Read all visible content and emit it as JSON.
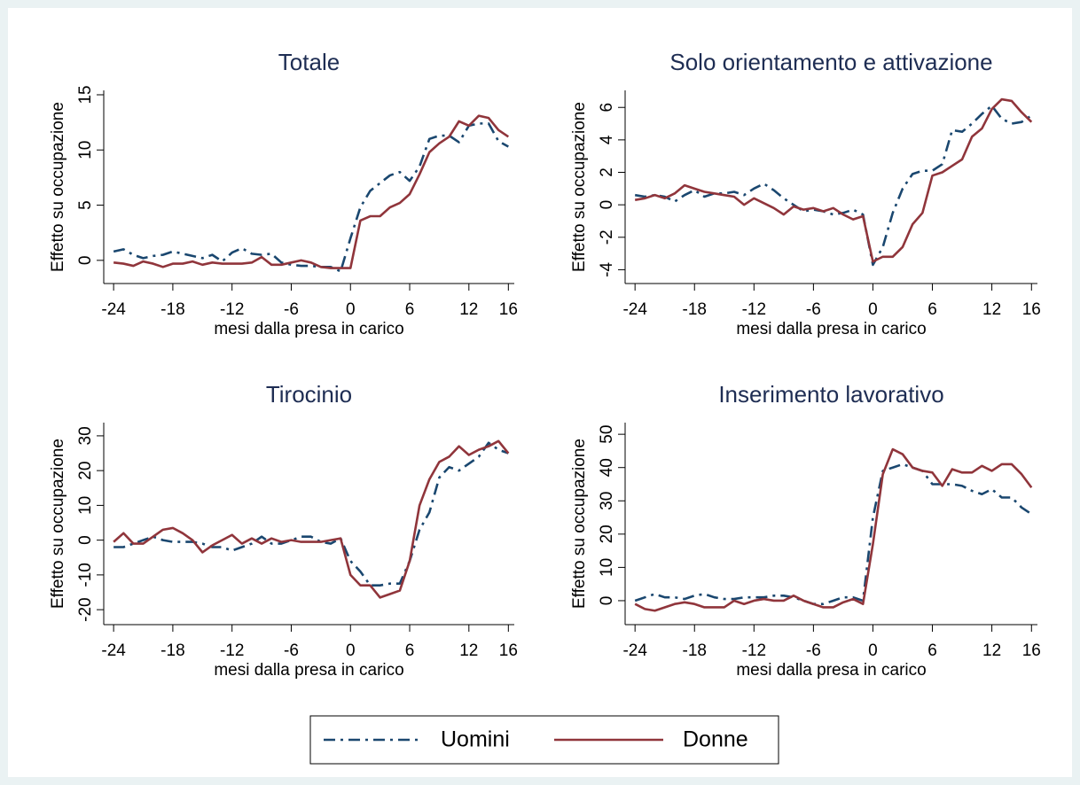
{
  "chart_data": [
    {
      "type": "line",
      "title": "Totale",
      "ylabel": "Effetto su occupazione",
      "xlabel": "mesi dalla presa in carico",
      "x": [
        -24,
        -23,
        -22,
        -21,
        -20,
        -19,
        -18,
        -17,
        -16,
        -15,
        -14,
        -13,
        -12,
        -11,
        -10,
        -9,
        -8,
        -7,
        -6,
        -5,
        -4,
        -3,
        -2,
        -1,
        0,
        1,
        2,
        3,
        4,
        5,
        6,
        7,
        8,
        9,
        10,
        11,
        12,
        13,
        14,
        15,
        16
      ],
      "xlim": [
        -25,
        16.6
      ],
      "xticks": [
        -24,
        -18,
        -12,
        -6,
        0,
        6,
        12,
        16
      ],
      "ylim": [
        -2.1,
        15.4
      ],
      "yticks": [
        0,
        5,
        10,
        15
      ],
      "series": [
        {
          "values": [
            0.8,
            1.0,
            0.5,
            0.2,
            0.4,
            0.5,
            0.8,
            0.6,
            0.4,
            0.2,
            0.5,
            -0.1,
            0.7,
            1.1,
            0.6,
            0.5,
            0.6,
            -0.2,
            -0.4,
            -0.5,
            -0.5,
            -0.6,
            -0.6,
            -1.0,
            2.0,
            4.8,
            6.3,
            7.0,
            7.7,
            8.0,
            7.2,
            8.5,
            11.0,
            11.3,
            11.3,
            10.7,
            12.2,
            12.4,
            12.4,
            10.8,
            10.3
          ]
        },
        {
          "values": [
            -0.2,
            -0.3,
            -0.5,
            -0.1,
            -0.3,
            -0.6,
            -0.3,
            -0.3,
            -0.1,
            -0.4,
            -0.2,
            -0.3,
            -0.3,
            -0.3,
            -0.2,
            0.3,
            -0.4,
            -0.4,
            -0.2,
            0.0,
            -0.2,
            -0.6,
            -0.7,
            -0.7,
            -0.7,
            3.6,
            4.0,
            4.0,
            4.8,
            5.2,
            6.0,
            7.8,
            9.8,
            10.6,
            11.2,
            12.6,
            12.2,
            13.1,
            12.9,
            11.8,
            11.2
          ]
        }
      ]
    },
    {
      "type": "line",
      "title": "Solo orientamento e attivazione",
      "ylabel": "Effetto su occupazione",
      "xlabel": "mesi dalla presa in carico",
      "x": [
        -24,
        -23,
        -22,
        -21,
        -20,
        -19,
        -18,
        -17,
        -16,
        -15,
        -14,
        -13,
        -12,
        -11,
        -10,
        -9,
        -8,
        -7,
        -6,
        -5,
        -4,
        -3,
        -2,
        -1,
        0,
        1,
        2,
        3,
        4,
        5,
        6,
        7,
        8,
        9,
        10,
        11,
        12,
        13,
        14,
        15,
        16
      ],
      "xlim": [
        -25,
        16.6
      ],
      "xticks": [
        -24,
        -18,
        -12,
        -6,
        0,
        6,
        12,
        16
      ],
      "ylim": [
        -4.85,
        7.05
      ],
      "yticks": [
        -4,
        -2,
        0,
        2,
        4,
        6
      ],
      "series": [
        {
          "values": [
            0.6,
            0.5,
            0.6,
            0.5,
            0.2,
            0.6,
            0.9,
            0.5,
            0.7,
            0.7,
            0.8,
            0.6,
            1.0,
            1.3,
            0.9,
            0.4,
            0.0,
            -0.4,
            -0.3,
            -0.4,
            -0.6,
            -0.5,
            -0.3,
            -0.6,
            -3.7,
            -2.6,
            -0.5,
            1.0,
            1.9,
            2.1,
            2.1,
            2.5,
            4.6,
            4.5,
            5.0,
            5.6,
            6.1,
            5.3,
            5.0,
            5.1,
            5.5
          ]
        },
        {
          "values": [
            0.3,
            0.4,
            0.6,
            0.4,
            0.7,
            1.2,
            1.0,
            0.8,
            0.7,
            0.6,
            0.5,
            0.0,
            0.4,
            0.1,
            -0.2,
            -0.6,
            -0.1,
            -0.3,
            -0.2,
            -0.4,
            -0.2,
            -0.6,
            -0.9,
            -0.7,
            -3.5,
            -3.2,
            -3.2,
            -2.6,
            -1.2,
            -0.5,
            1.8,
            2.0,
            2.4,
            2.8,
            4.2,
            4.7,
            5.9,
            6.5,
            6.4,
            5.7,
            5.1
          ]
        }
      ]
    },
    {
      "type": "line",
      "title": "Tirocinio",
      "ylabel": "Effetto su occupazione",
      "xlabel": "mesi dalla presa in carico",
      "x": [
        -24,
        -23,
        -22,
        -21,
        -20,
        -19,
        -18,
        -17,
        -16,
        -15,
        -14,
        -13,
        -12,
        -11,
        -10,
        -9,
        -8,
        -7,
        -6,
        -5,
        -4,
        -3,
        -2,
        -1,
        0,
        1,
        2,
        3,
        4,
        5,
        6,
        7,
        8,
        9,
        10,
        11,
        12,
        13,
        14,
        15,
        16
      ],
      "xlim": [
        -25,
        16.6
      ],
      "xticks": [
        -24,
        -18,
        -12,
        -6,
        0,
        6,
        12,
        16
      ],
      "ylim": [
        -24.3,
        33.8
      ],
      "yticks": [
        -20,
        -10,
        0,
        10,
        20,
        30
      ],
      "series": [
        {
          "values": [
            -2,
            -2,
            -1,
            0,
            1,
            0,
            -0.5,
            -0.5,
            -0.5,
            -1,
            -2,
            -2,
            -3,
            -2,
            -1,
            1,
            -1,
            -1,
            0,
            1,
            1,
            -0.5,
            -1,
            0.5,
            -6,
            -9,
            -13,
            -13,
            -12.5,
            -12.5,
            -6,
            3,
            8,
            18,
            21,
            20,
            22,
            24,
            28,
            26,
            25
          ]
        },
        {
          "values": [
            -0.5,
            2,
            -1,
            -1,
            1,
            3,
            3.5,
            2,
            0,
            -3.5,
            -1.5,
            0,
            1.5,
            -1,
            0.5,
            -1,
            0.5,
            -0.5,
            0,
            -0.5,
            -0.5,
            -0.5,
            0,
            0.5,
            -10,
            -13,
            -13,
            -16.5,
            -15.5,
            -14.5,
            -6,
            10,
            17.5,
            22.5,
            24,
            27,
            24.5,
            26,
            27,
            28.5,
            25
          ]
        }
      ]
    },
    {
      "type": "line",
      "title": "Inserimento lavorativo",
      "ylabel": "Effetto su occupazione",
      "xlabel": "mesi dalla presa in carico",
      "x": [
        -24,
        -23,
        -22,
        -21,
        -20,
        -19,
        -18,
        -17,
        -16,
        -15,
        -14,
        -13,
        -12,
        -11,
        -10,
        -9,
        -8,
        -7,
        -6,
        -5,
        -4,
        -3,
        -2,
        -1,
        0,
        1,
        2,
        3,
        4,
        5,
        6,
        7,
        8,
        9,
        10,
        11,
        12,
        13,
        14,
        15,
        16
      ],
      "xlim": [
        -25,
        16.6
      ],
      "xticks": [
        -24,
        -18,
        -12,
        -6,
        0,
        6,
        12,
        16
      ],
      "ylim": [
        -7.2,
        53.5
      ],
      "yticks": [
        0,
        10,
        20,
        30,
        40,
        50
      ],
      "series": [
        {
          "values": [
            0,
            1,
            2,
            1,
            1,
            0.5,
            1.5,
            2,
            1,
            0.5,
            0.5,
            1,
            1,
            1,
            1.5,
            1.5,
            1,
            0,
            -1,
            -1,
            0,
            1,
            1,
            0,
            25,
            39,
            40,
            41,
            40,
            39,
            35,
            35,
            35,
            34.5,
            33,
            32,
            33.5,
            31,
            31,
            28,
            26
          ]
        },
        {
          "values": [
            -1,
            -2.5,
            -3,
            -2,
            -1,
            -0.5,
            -1,
            -2,
            -2,
            -2,
            0,
            -1,
            0,
            0.5,
            0,
            0,
            1.5,
            0,
            -1,
            -2,
            -2,
            -0.5,
            0.5,
            -1,
            17,
            38,
            45.5,
            44,
            40,
            39,
            38.5,
            34.5,
            39.5,
            38.5,
            38.5,
            40.5,
            39,
            41,
            41,
            38,
            34
          ]
        }
      ]
    }
  ],
  "legend": [
    {
      "name": "Uomini",
      "color": "#1a476f",
      "dash": "dashdot"
    },
    {
      "name": "Donne",
      "color": "#90353b",
      "dash": "solid"
    }
  ]
}
